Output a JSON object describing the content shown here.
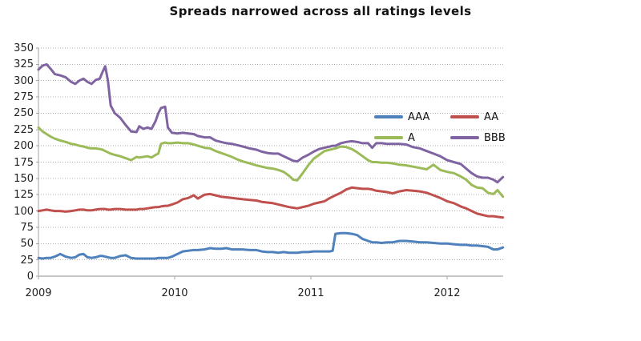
{
  "title": "Spreads narrowed across all ratings levels",
  "legend": {
    "items": [
      {
        "label": "AAA",
        "color": "#4F81BD"
      },
      {
        "label": "AA",
        "color": "#C0504D"
      },
      {
        "label": "A",
        "color": "#9BBB59"
      },
      {
        "label": "BBB",
        "color": "#8064A2"
      }
    ]
  },
  "chart_data": {
    "type": "line",
    "title": "Spreads narrowed across all ratings levels",
    "xlabel": "",
    "ylabel": "",
    "units": "basis points (spread)",
    "grid": "horizontal dotted gridlines on, every 25",
    "legend_position": "inside top-right, two columns, no border",
    "xlim": [
      2009.0,
      2012.41
    ],
    "ylim": [
      0,
      350
    ],
    "x_ticks": [
      2009,
      2010,
      2011,
      2012
    ],
    "y_ticks": [
      0,
      25,
      50,
      75,
      100,
      125,
      150,
      175,
      200,
      225,
      250,
      275,
      300,
      325,
      350
    ],
    "x": [
      2009.0,
      2009.03,
      2009.06,
      2009.09,
      2009.12,
      2009.16,
      2009.2,
      2009.24,
      2009.27,
      2009.3,
      2009.33,
      2009.36,
      2009.39,
      2009.42,
      2009.45,
      2009.47,
      2009.49,
      2009.51,
      2009.53,
      2009.56,
      2009.6,
      2009.64,
      2009.68,
      2009.72,
      2009.74,
      2009.77,
      2009.8,
      2009.83,
      2009.86,
      2009.88,
      2009.9,
      2009.93,
      2009.95,
      2009.98,
      2010.02,
      2010.06,
      2010.1,
      2010.14,
      2010.17,
      2010.22,
      2010.26,
      2010.3,
      2010.34,
      2010.38,
      2010.42,
      2010.46,
      2010.5,
      2010.55,
      2010.6,
      2010.64,
      2010.68,
      2010.72,
      2010.76,
      2010.8,
      2010.84,
      2010.87,
      2010.9,
      2010.94,
      2010.98,
      2011.02,
      2011.06,
      2011.1,
      2011.14,
      2011.16,
      2011.18,
      2011.22,
      2011.26,
      2011.3,
      2011.34,
      2011.38,
      2011.42,
      2011.45,
      2011.48,
      2011.52,
      2011.56,
      2011.6,
      2011.65,
      2011.7,
      2011.75,
      2011.8,
      2011.85,
      2011.9,
      2011.95,
      2012.0,
      2012.05,
      2012.1,
      2012.14,
      2012.18,
      2012.22,
      2012.26,
      2012.3,
      2012.34,
      2012.37,
      2012.41
    ],
    "series": [
      {
        "name": "AAA",
        "color": "#4F81BD",
        "values": [
          28,
          27,
          28,
          28,
          30,
          34,
          30,
          28,
          29,
          33,
          34,
          29,
          28,
          29,
          31,
          31,
          30,
          29,
          28,
          28,
          31,
          32,
          28,
          27,
          27,
          27,
          27,
          27,
          27,
          28,
          28,
          28,
          28,
          30,
          34,
          38,
          39,
          40,
          40,
          41,
          43,
          42,
          42,
          43,
          41,
          41,
          41,
          40,
          40,
          38,
          37,
          37,
          36,
          37,
          36,
          36,
          36,
          37,
          37,
          38,
          38,
          38,
          38,
          39,
          65,
          66,
          66,
          65,
          63,
          57,
          54,
          52,
          52,
          51,
          52,
          52,
          54,
          54,
          53,
          52,
          52,
          51,
          50,
          50,
          49,
          48,
          48,
          47,
          47,
          46,
          45,
          41,
          41,
          44
        ]
      },
      {
        "name": "AA",
        "color": "#C0504D",
        "values": [
          100,
          101,
          102,
          101,
          100,
          100,
          99,
          100,
          101,
          102,
          102,
          101,
          101,
          102,
          103,
          103,
          103,
          102,
          102,
          103,
          103,
          102,
          102,
          102,
          103,
          103,
          104,
          105,
          106,
          106,
          107,
          108,
          108,
          110,
          113,
          118,
          120,
          124,
          119,
          125,
          126,
          124,
          122,
          121,
          120,
          119,
          118,
          117,
          116,
          114,
          113,
          112,
          110,
          108,
          106,
          105,
          104,
          106,
          108,
          111,
          113,
          115,
          120,
          122,
          124,
          128,
          133,
          136,
          135,
          134,
          134,
          133,
          131,
          130,
          129,
          127,
          130,
          132,
          131,
          130,
          128,
          124,
          120,
          115,
          112,
          107,
          104,
          100,
          96,
          94,
          92,
          92,
          91,
          90
        ]
      },
      {
        "name": "A",
        "color": "#9BBB59",
        "values": [
          228,
          222,
          218,
          214,
          211,
          208,
          206,
          203,
          202,
          200,
          199,
          197,
          196,
          196,
          195,
          194,
          192,
          190,
          188,
          186,
          184,
          181,
          178,
          183,
          182,
          183,
          184,
          182,
          186,
          188,
          203,
          205,
          204,
          204,
          205,
          204,
          204,
          202,
          200,
          197,
          196,
          192,
          189,
          186,
          183,
          179,
          176,
          173,
          170,
          168,
          166,
          165,
          163,
          160,
          154,
          148,
          147,
          158,
          170,
          180,
          186,
          192,
          194,
          195,
          196,
          199,
          198,
          195,
          190,
          184,
          178,
          175,
          175,
          174,
          174,
          173,
          171,
          170,
          168,
          166,
          164,
          171,
          163,
          160,
          158,
          153,
          148,
          140,
          136,
          135,
          128,
          126,
          132,
          122
        ]
      },
      {
        "name": "BBB",
        "color": "#8064A2",
        "values": [
          317,
          323,
          325,
          318,
          310,
          308,
          305,
          298,
          295,
          300,
          303,
          298,
          295,
          301,
          303,
          313,
          322,
          300,
          262,
          250,
          243,
          232,
          222,
          221,
          230,
          226,
          228,
          226,
          238,
          250,
          258,
          260,
          228,
          220,
          219,
          220,
          219,
          218,
          215,
          213,
          213,
          208,
          206,
          204,
          203,
          201,
          199,
          196,
          194,
          191,
          189,
          188,
          188,
          184,
          180,
          177,
          176,
          182,
          186,
          191,
          195,
          197,
          199,
          200,
          200,
          204,
          206,
          207,
          206,
          204,
          204,
          197,
          204,
          204,
          203,
          203,
          203,
          202,
          198,
          196,
          192,
          188,
          184,
          178,
          175,
          172,
          165,
          158,
          153,
          151,
          151,
          148,
          144,
          152
        ]
      }
    ]
  },
  "style": {
    "grid_color": "#b0b0b0",
    "axis_color": "#a3a3a3",
    "baseline_color": "#c8c8c8",
    "text_color": "#222222",
    "background": "#ffffff"
  }
}
